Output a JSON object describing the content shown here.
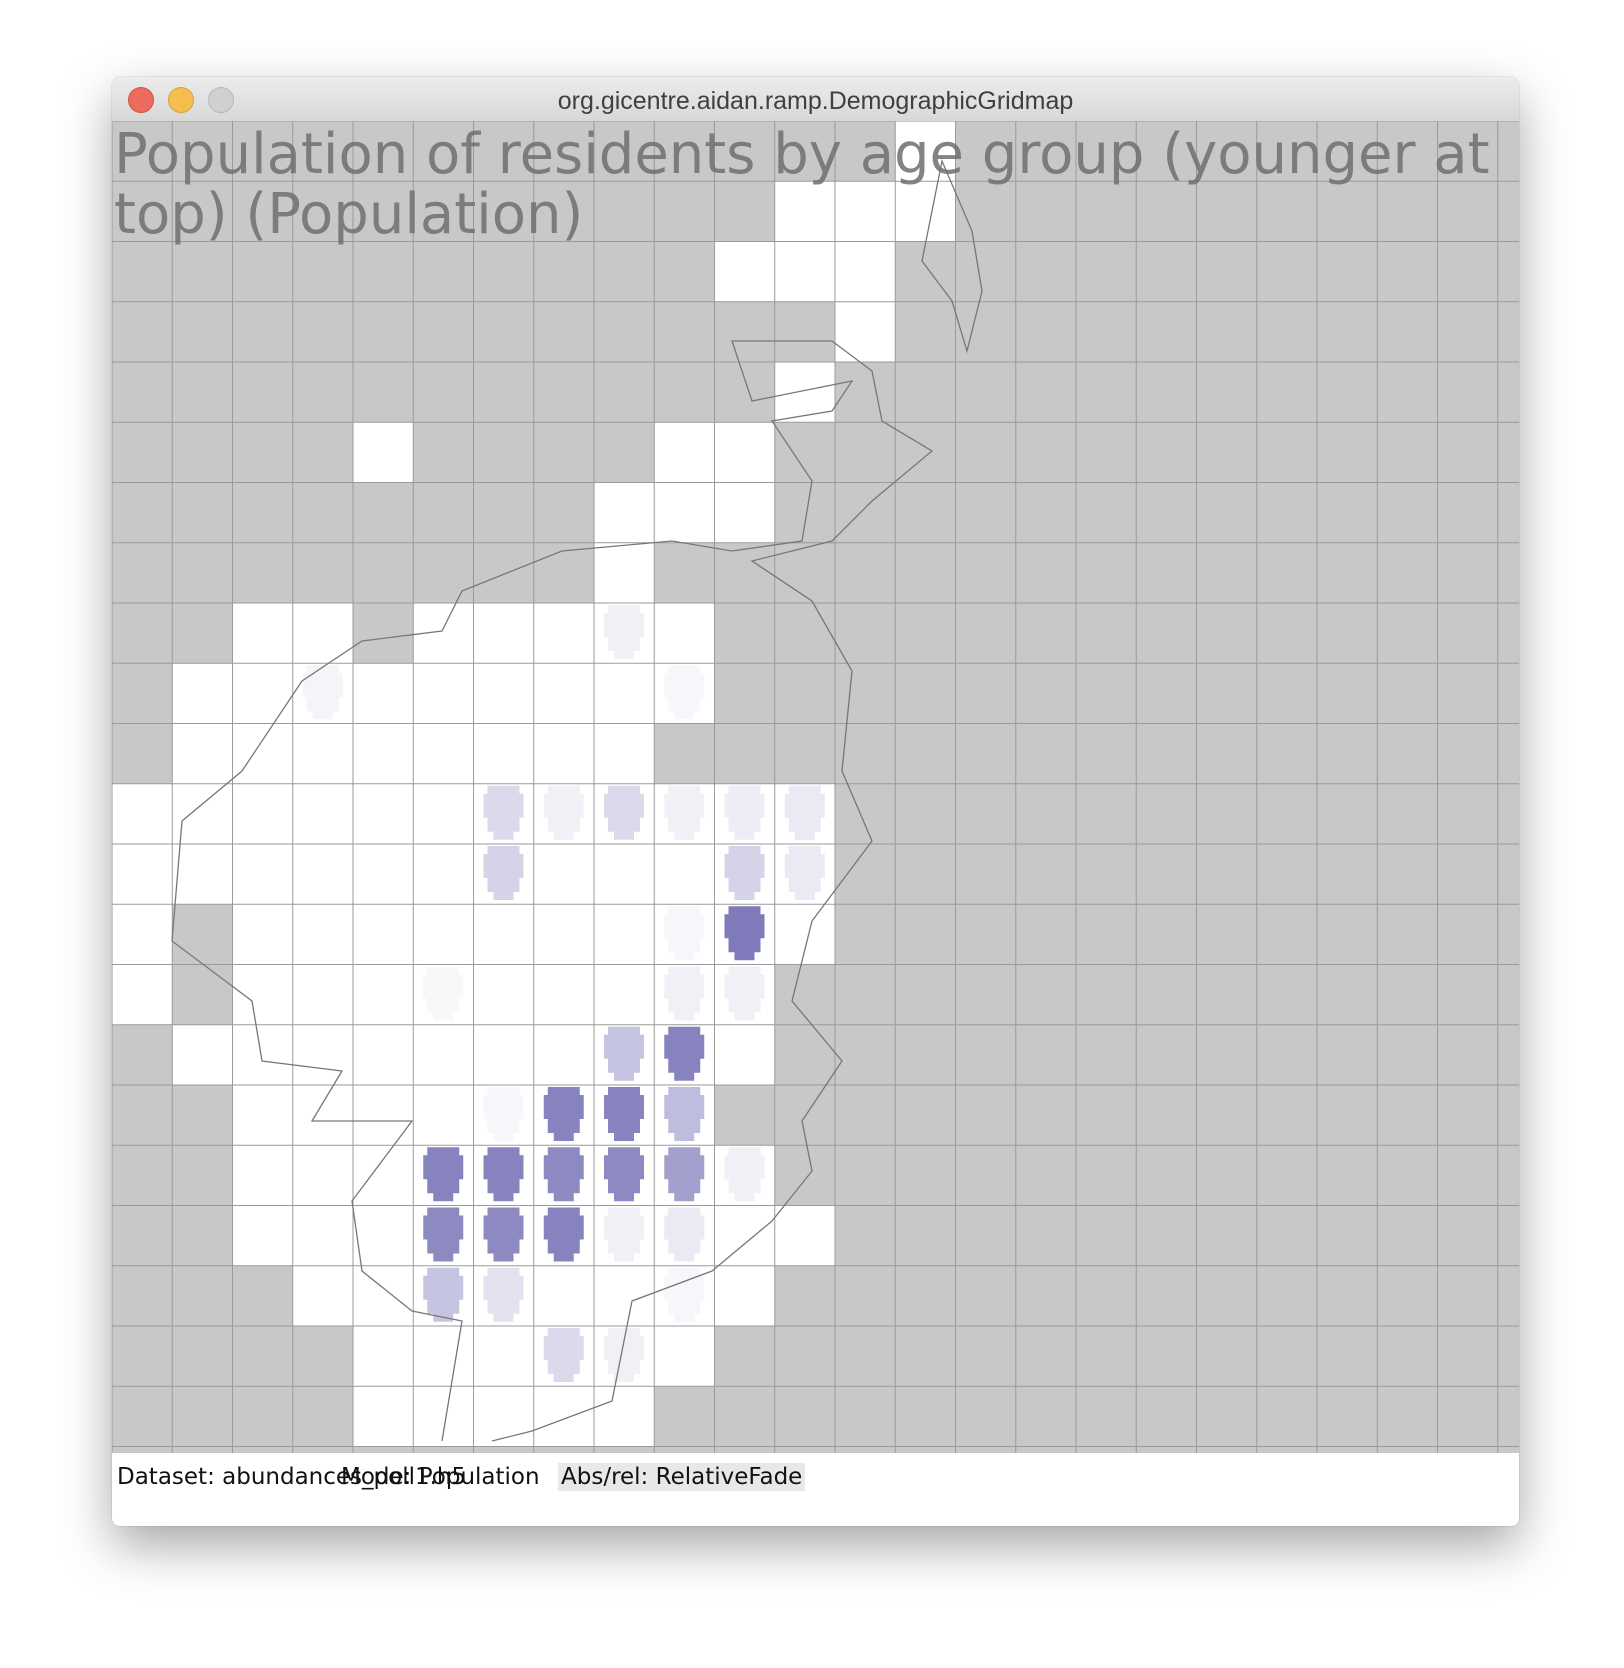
{
  "window": {
    "title": "org.gicentre.aidan.ramp.DemographicGridmap"
  },
  "map": {
    "title": "Population of residents by age group (younger at top) (Population)"
  },
  "status": {
    "items": [
      "Dataset: abundances_poll1.h5",
      "Mode: Population",
      "Abs/rel: RelativeFade"
    ]
  }
}
